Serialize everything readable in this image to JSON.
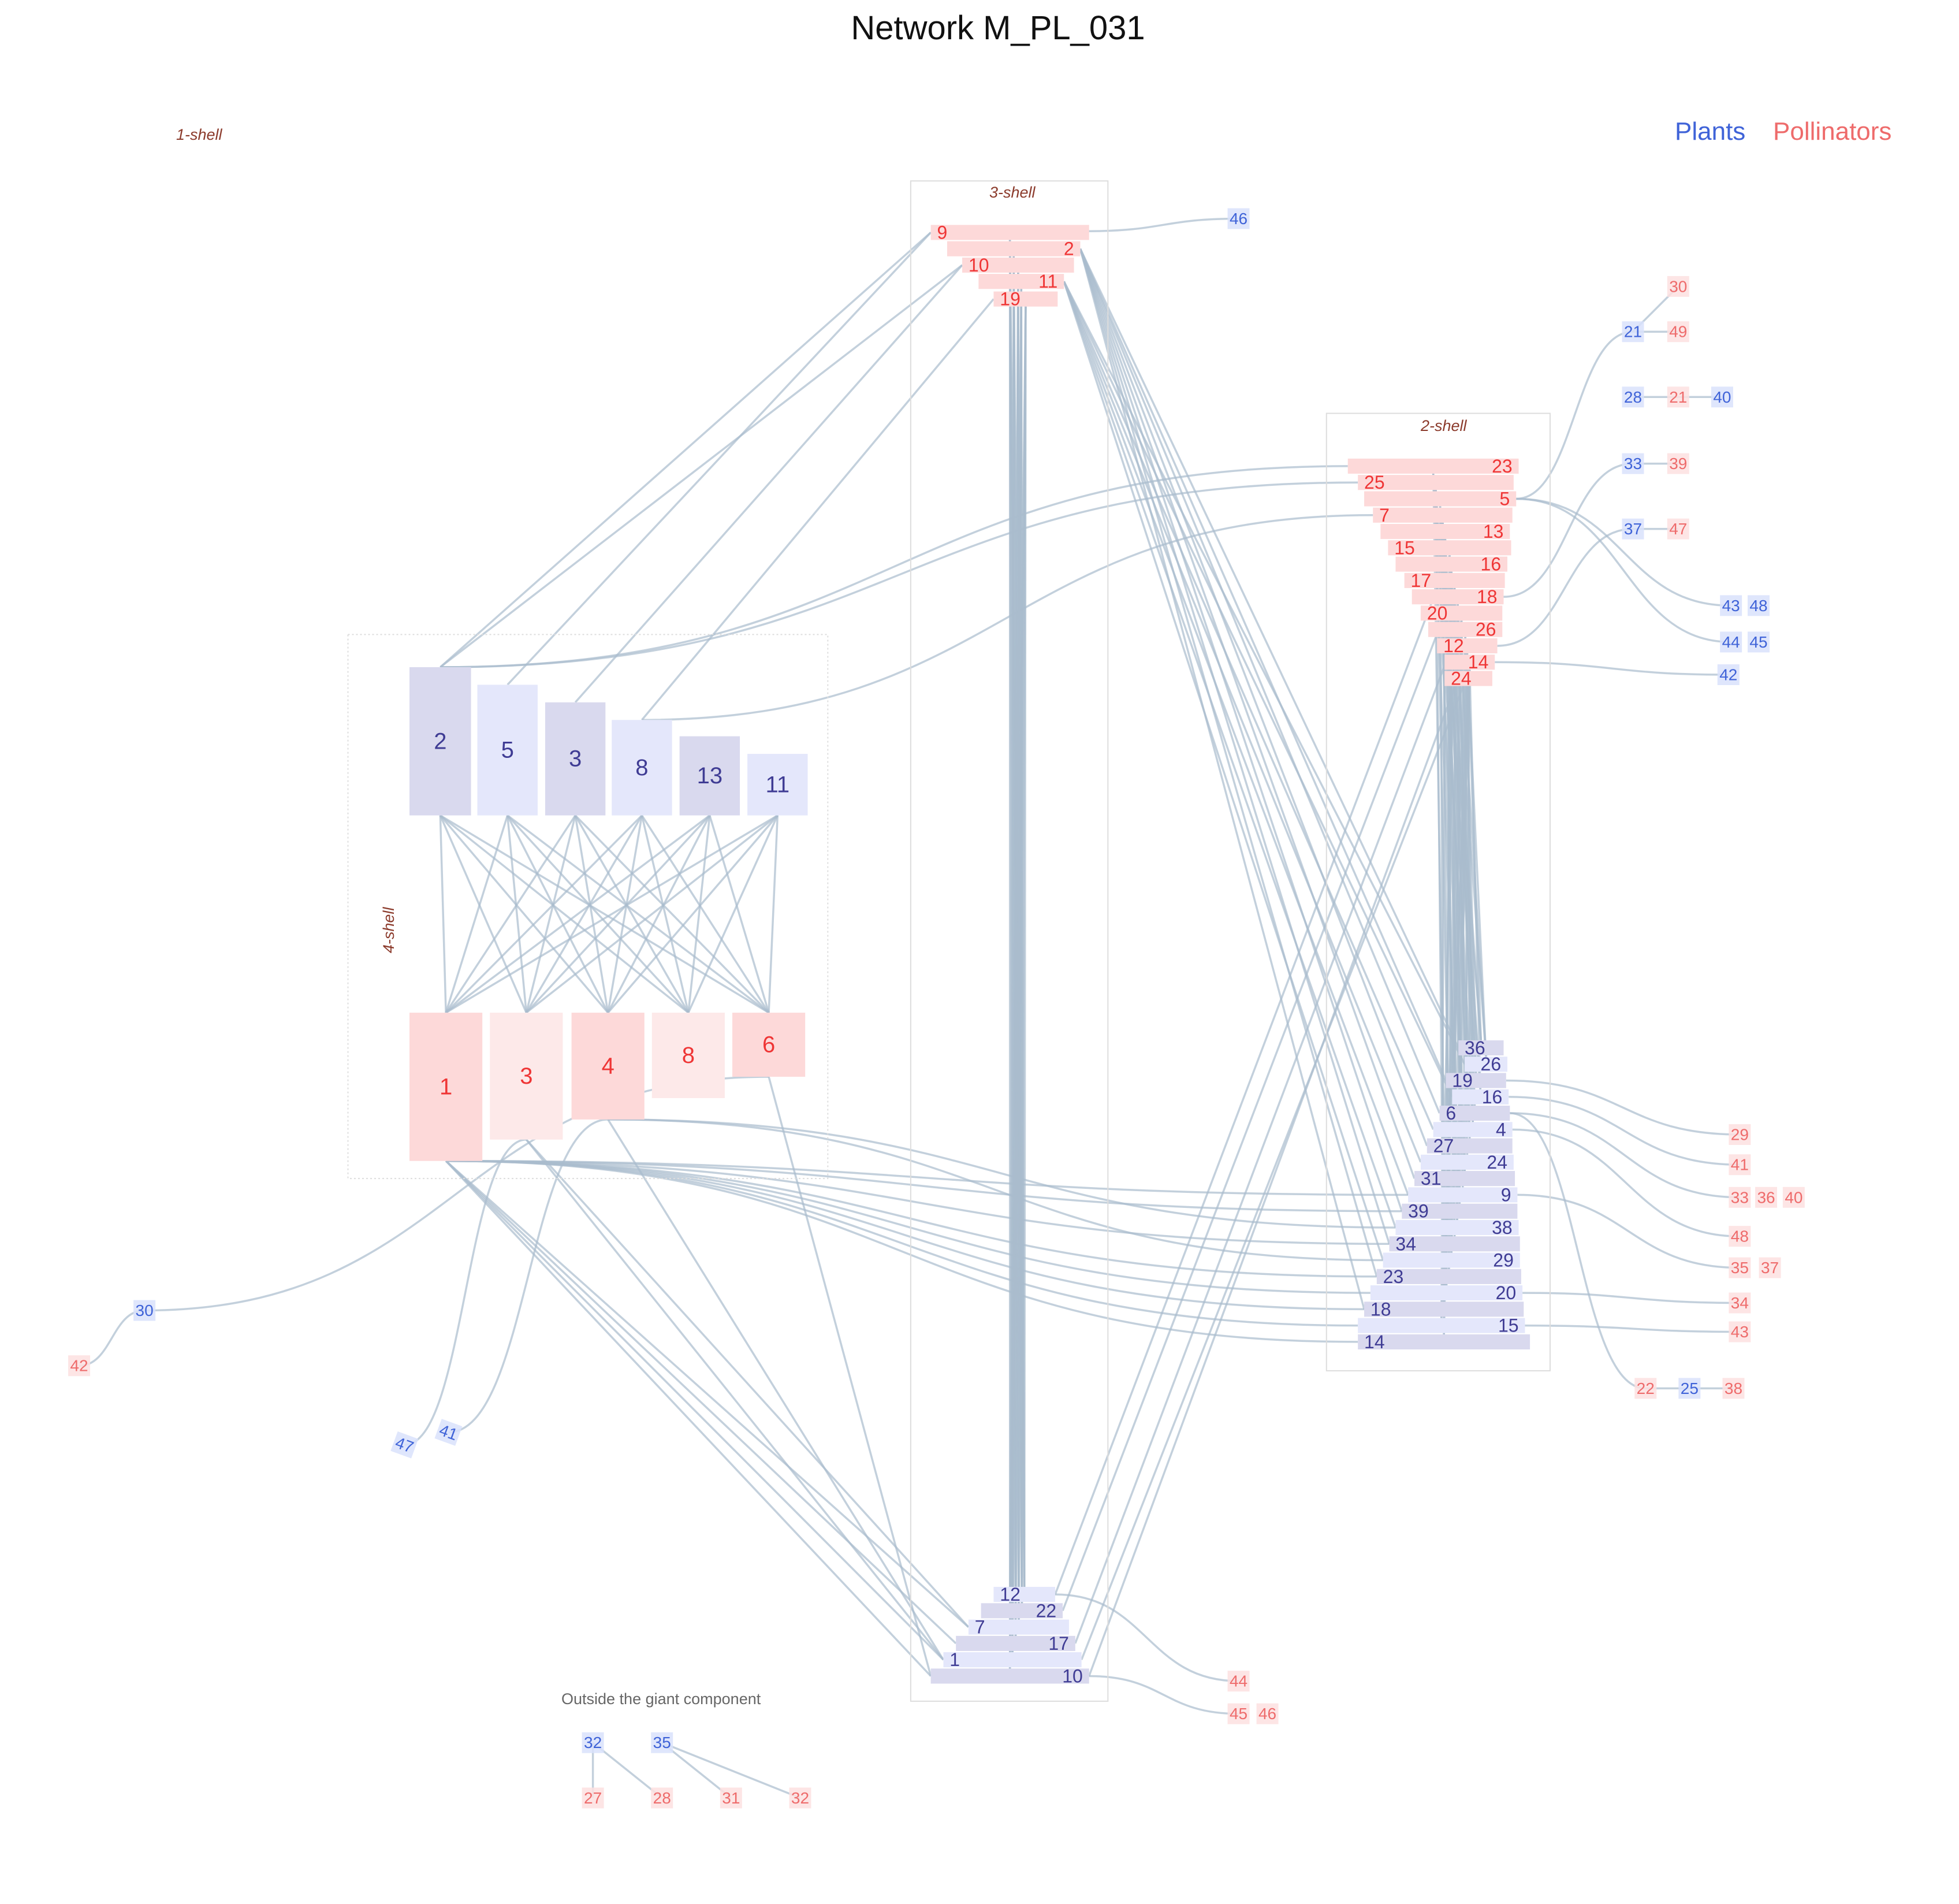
{
  "title": "Network M_PL_031",
  "legend": {
    "plants_label": "Plants",
    "pollinators_label": "Pollinators",
    "plants_color": "#3f63d8",
    "pollinators_color": "#ee6b6b"
  },
  "colors": {
    "plant_dark": "#d9d9ee",
    "plant_light": "#e4e7fb",
    "plant_text": "#3f3c94",
    "pollinator_fill": "#fdd9d9",
    "pollinator_fill_light": "#fde9e9",
    "pollinator_text": "#ef3535",
    "peripheral_plant_text": "#3f63d8",
    "peripheral_plant_fill": "#d9e2fb",
    "peripheral_pollinator_text": "#ee6b6b",
    "peripheral_pollinator_fill": "#fde0e0",
    "link": "#a9bccd"
  },
  "shells": {
    "shell1": "1-shell",
    "shell2": "2-shell",
    "shell3": "3-shell",
    "shell4": "4-shell"
  },
  "outside_giant_label": "Outside the giant component",
  "core_nodes": {
    "shell4_plants": [
      "2",
      "5",
      "3",
      "8",
      "13",
      "11"
    ],
    "shell4_pollinators": [
      "1",
      "3",
      "4",
      "8",
      "6"
    ],
    "shell3_pollinators": [
      "9",
      "2",
      "10",
      "11",
      "19"
    ],
    "shell3_plants": [
      "12",
      "22",
      "7",
      "17",
      "1",
      "10"
    ],
    "shell2_pollinators": [
      "23",
      "25",
      "5",
      "7",
      "13",
      "15",
      "16",
      "17",
      "18",
      "20",
      "26",
      "12",
      "14",
      "24"
    ],
    "shell2_plants": [
      "36",
      "26",
      "19",
      "16",
      "6",
      "4",
      "27",
      "24",
      "31",
      "9",
      "39",
      "38",
      "34",
      "29",
      "23",
      "20",
      "18",
      "15",
      "14"
    ]
  },
  "peripheral_nodes": {
    "plants": [
      "46",
      "21",
      "28",
      "40",
      "33",
      "37",
      "43",
      "48",
      "44",
      "45",
      "42",
      "25",
      "30",
      "47",
      "41",
      "32",
      "35"
    ],
    "pollinators": [
      "30",
      "49",
      "21",
      "39",
      "47",
      "29",
      "41",
      "33",
      "36",
      "40",
      "48",
      "35",
      "37",
      "34",
      "43",
      "22",
      "38",
      "44",
      "45",
      "46",
      "42",
      "27",
      "28",
      "31",
      "32"
    ]
  }
}
